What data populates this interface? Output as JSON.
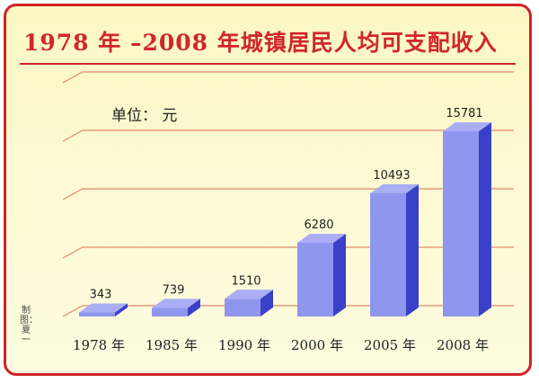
{
  "title": "1978 年 –2008 年城镇居民人均可支配收入",
  "unit_label": "单位： 元",
  "credit": "制图：夏一",
  "chart_data": {
    "type": "bar",
    "title": "1978 年 –2008 年城镇居民人均可支配收入",
    "categories": [
      "1978 年",
      "1985 年",
      "1990 年",
      "2000 年",
      "2005 年",
      "2008 年"
    ],
    "values": [
      343,
      739,
      1510,
      6280,
      10493,
      15781
    ],
    "value_labels": [
      "343",
      "739",
      "1510",
      "6280",
      "10493",
      "15781"
    ],
    "ylabel": "单位： 元",
    "ylim": [
      0,
      18000
    ],
    "grid": true,
    "colors": {
      "bar_front": "#8f96ee",
      "bar_side": "#3a41c8",
      "bar_top": "#a9aef5",
      "grid": "#e08a6a",
      "title": "#d1262b",
      "frame": "#cf2327"
    }
  }
}
